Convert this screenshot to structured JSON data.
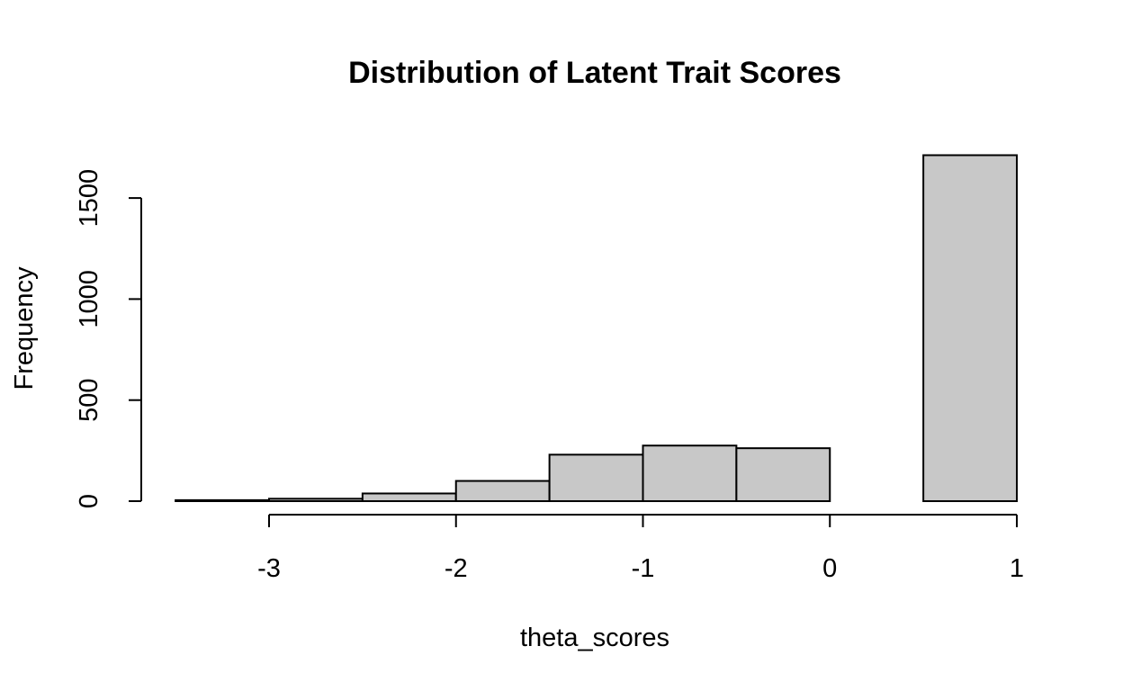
{
  "chart_data": {
    "type": "bar",
    "title": "Distribution of Latent Trait Scores",
    "xlabel": "theta_scores",
    "ylabel": "Frequency",
    "xlim": [
      -3.5,
      1.0
    ],
    "ylim": [
      0,
      1700
    ],
    "x_ticks": [
      -3,
      -2,
      -1,
      0,
      1
    ],
    "y_ticks": [
      0,
      500,
      1000,
      1500
    ],
    "bins": [
      {
        "x0": -3.5,
        "x1": -3.0,
        "value": 5
      },
      {
        "x0": -3.0,
        "x1": -2.5,
        "value": 12
      },
      {
        "x0": -2.5,
        "x1": -2.0,
        "value": 38
      },
      {
        "x0": -2.0,
        "x1": -1.5,
        "value": 100
      },
      {
        "x0": -1.5,
        "x1": -1.0,
        "value": 230
      },
      {
        "x0": -1.0,
        "x1": -0.5,
        "value": 275
      },
      {
        "x0": -0.5,
        "x1": 0.0,
        "value": 262
      },
      {
        "x0": 0.0,
        "x1": 0.5,
        "value": 0
      },
      {
        "x0": 0.5,
        "x1": 1.0,
        "value": 1712
      }
    ],
    "bar_color": "#c8c8c8",
    "grid": false,
    "legend": "none"
  }
}
